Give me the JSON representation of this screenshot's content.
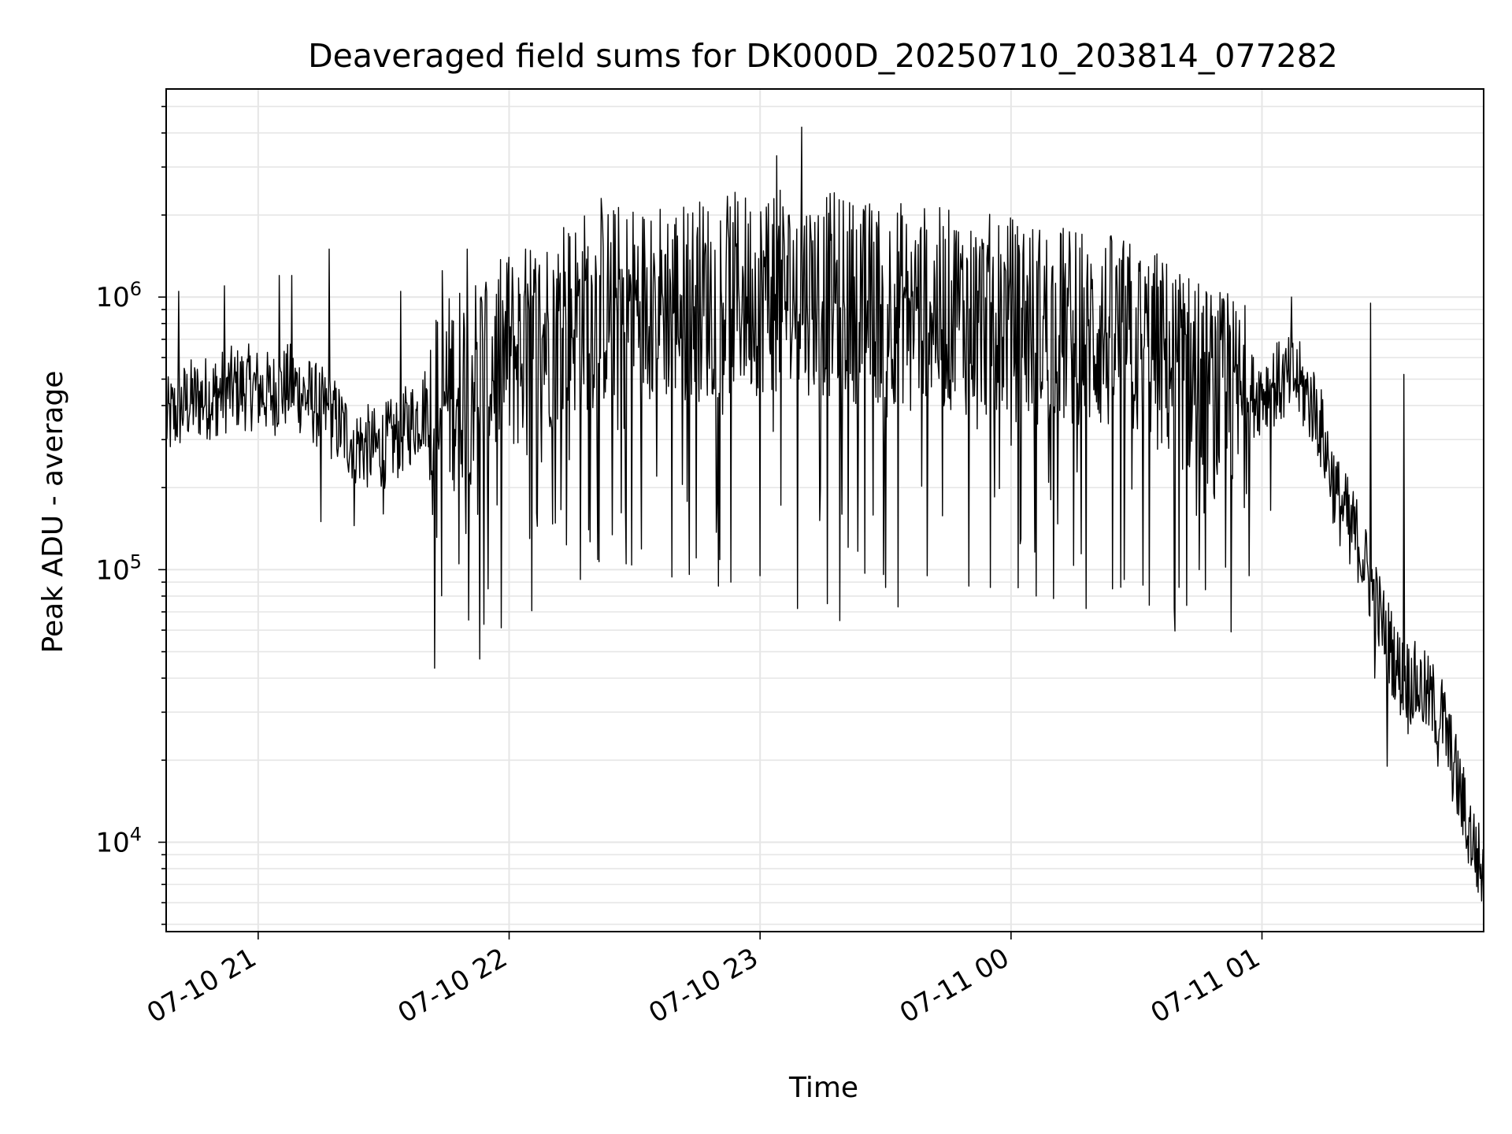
{
  "chart_data": {
    "type": "line",
    "title": "Deaveraged field sums for DK000D_20250710_203814_077282",
    "xlabel": "Time",
    "ylabel": "Peak ADU - average",
    "yscale": "log",
    "grid": true,
    "legend": "none",
    "series_color": "#000000",
    "grid_color": "#e6e6e6",
    "xlim": [
      "2025-07-10 20:38",
      "2025-07-11 01:53"
    ],
    "ylim": [
      4700,
      5800000
    ],
    "x_ticks": [
      {
        "value": "2025-07-10 21:00",
        "label": "07-10 21"
      },
      {
        "value": "2025-07-10 22:00",
        "label": "07-10 22"
      },
      {
        "value": "2025-07-10 23:00",
        "label": "07-10 23"
      },
      {
        "value": "2025-07-11 00:00",
        "label": "07-11 00"
      },
      {
        "value": "2025-07-11 01:00",
        "label": "07-11 01"
      }
    ],
    "y_ticks": [
      {
        "value": 10000,
        "base": "10",
        "exp": "4"
      },
      {
        "value": 100000,
        "base": "10",
        "exp": "5"
      },
      {
        "value": 1000000,
        "base": "10",
        "exp": "6"
      }
    ],
    "series": [
      {
        "points": [
          [
            "2025-07-10 20:38",
            380000
          ],
          [
            "2025-07-10 20:43",
            450000
          ],
          [
            "2025-07-10 20:48",
            470000
          ],
          [
            "2025-07-10 20:53",
            500000
          ],
          [
            "2025-07-10 20:58",
            510000
          ],
          [
            "2025-07-10 21:03",
            480000
          ],
          [
            "2025-07-10 21:08",
            520000
          ],
          [
            "2025-07-10 21:13",
            450000
          ],
          [
            "2025-07-10 21:18",
            390000
          ],
          [
            "2025-07-10 21:23",
            320000
          ],
          [
            "2025-07-10 21:28",
            300000
          ],
          [
            "2025-07-10 21:33",
            330000
          ],
          [
            "2025-07-10 21:38",
            400000
          ],
          [
            "2025-07-10 21:43",
            480000
          ],
          [
            "2025-07-10 21:48",
            600000
          ],
          [
            "2025-07-10 21:53",
            680000
          ],
          [
            "2025-07-10 21:58",
            720000
          ],
          [
            "2025-07-10 22:03",
            800000
          ],
          [
            "2025-07-10 22:08",
            900000
          ],
          [
            "2025-07-10 22:13",
            1000000
          ],
          [
            "2025-07-10 22:18",
            1100000
          ],
          [
            "2025-07-10 22:23",
            1150000
          ],
          [
            "2025-07-10 22:28",
            1150000
          ],
          [
            "2025-07-10 22:33",
            1180000
          ],
          [
            "2025-07-10 22:38",
            1200000
          ],
          [
            "2025-07-10 22:43",
            1200000
          ],
          [
            "2025-07-10 22:48",
            1220000
          ],
          [
            "2025-07-10 22:53",
            1250000
          ],
          [
            "2025-07-10 22:58",
            1280000
          ],
          [
            "2025-07-10 23:03",
            1300000
          ],
          [
            "2025-07-10 23:08",
            1300000
          ],
          [
            "2025-07-10 23:13",
            1280000
          ],
          [
            "2025-07-10 23:18",
            1250000
          ],
          [
            "2025-07-10 23:23",
            1200000
          ],
          [
            "2025-07-10 23:28",
            1180000
          ],
          [
            "2025-07-10 23:33",
            1180000
          ],
          [
            "2025-07-10 23:38",
            1150000
          ],
          [
            "2025-07-10 23:43",
            1100000
          ],
          [
            "2025-07-10 23:48",
            1080000
          ],
          [
            "2025-07-10 23:53",
            1050000
          ],
          [
            "2025-07-10 23:58",
            1050000
          ],
          [
            "2025-07-11 00:03",
            1000000
          ],
          [
            "2025-07-11 00:08",
            980000
          ],
          [
            "2025-07-11 00:13",
            950000
          ],
          [
            "2025-07-11 00:18",
            930000
          ],
          [
            "2025-07-11 00:23",
            900000
          ],
          [
            "2025-07-11 00:28",
            850000
          ],
          [
            "2025-07-11 00:33",
            800000
          ],
          [
            "2025-07-11 00:38",
            720000
          ],
          [
            "2025-07-11 00:43",
            640000
          ],
          [
            "2025-07-11 00:48",
            560000
          ],
          [
            "2025-07-11 00:53",
            520000
          ],
          [
            "2025-07-11 00:58",
            480000
          ],
          [
            "2025-07-11 01:03",
            520000
          ],
          [
            "2025-07-11 01:08",
            550000
          ],
          [
            "2025-07-11 01:13",
            420000
          ],
          [
            "2025-07-11 01:18",
            200000
          ],
          [
            "2025-07-11 01:23",
            140000
          ],
          [
            "2025-07-11 01:28",
            75000
          ],
          [
            "2025-07-11 01:33",
            45000
          ],
          [
            "2025-07-11 01:38",
            40000
          ],
          [
            "2025-07-11 01:43",
            32000
          ],
          [
            "2025-07-11 01:48",
            15000
          ],
          [
            "2025-07-11 01:53",
            8000
          ]
        ],
        "dips": [
          [
            "2025-07-10 20:50",
            310000
          ],
          [
            "2025-07-10 21:15",
            150000
          ],
          [
            "2025-07-10 21:17",
            145000
          ],
          [
            "2025-07-10 21:23",
            145000
          ],
          [
            "2025-07-10 21:30",
            160000
          ],
          [
            "2025-07-10 21:44",
            145000
          ],
          [
            "2025-07-10 21:48",
            105000
          ],
          [
            "2025-07-10 21:53",
            47000
          ],
          [
            "2025-07-10 21:54",
            63000
          ],
          [
            "2025-07-10 21:55",
            85000
          ],
          [
            "2025-07-10 22:05",
            130000
          ],
          [
            "2025-07-10 22:17",
            92000
          ],
          [
            "2025-07-10 22:19",
            140000
          ],
          [
            "2025-07-10 22:28",
            105000
          ],
          [
            "2025-07-10 22:39",
            94000
          ],
          [
            "2025-07-10 22:43",
            96000
          ],
          [
            "2025-07-10 22:50",
            87000
          ],
          [
            "2025-07-10 22:53",
            90000
          ],
          [
            "2025-07-10 23:00",
            95000
          ],
          [
            "2025-07-10 23:02",
            75000
          ],
          [
            "2025-07-10 23:04",
            70000
          ],
          [
            "2025-07-10 23:09",
            72000
          ],
          [
            "2025-07-10 23:16",
            75000
          ],
          [
            "2025-07-10 23:19",
            65000
          ],
          [
            "2025-07-10 23:25",
            97000
          ],
          [
            "2025-07-10 23:30",
            86000
          ],
          [
            "2025-07-10 23:33",
            73000
          ],
          [
            "2025-07-10 23:40",
            95000
          ],
          [
            "2025-07-10 23:47",
            88000
          ],
          [
            "2025-07-10 23:50",
            87000
          ],
          [
            "2025-07-10 23:55",
            86000
          ],
          [
            "2025-07-11 00:06",
            80000
          ],
          [
            "2025-07-11 00:12",
            72000
          ],
          [
            "2025-07-11 00:18",
            72000
          ],
          [
            "2025-07-11 00:27",
            92000
          ],
          [
            "2025-07-11 00:33",
            74000
          ],
          [
            "2025-07-11 00:39",
            72000
          ],
          [
            "2025-07-11 00:45",
            100000
          ],
          [
            "2025-07-11 00:57",
            95000
          ],
          [
            "2025-07-11 01:02",
            165000
          ],
          [
            "2025-07-11 01:21",
            105000
          ],
          [
            "2025-07-11 01:27",
            40000
          ],
          [
            "2025-07-11 01:30",
            19000
          ],
          [
            "2025-07-11 01:35",
            25000
          ],
          [
            "2025-07-11 01:42",
            19000
          ],
          [
            "2025-07-11 01:49",
            10000
          ]
        ],
        "spikes": [
          [
            "2025-07-10 20:41",
            1050000
          ],
          [
            "2025-07-10 20:52",
            1100000
          ],
          [
            "2025-07-10 21:05",
            1200000
          ],
          [
            "2025-07-10 21:08",
            1200000
          ],
          [
            "2025-07-10 21:17",
            1500000
          ],
          [
            "2025-07-10 21:34",
            1050000
          ],
          [
            "2025-07-10 21:44",
            1250000
          ],
          [
            "2025-07-10 21:50",
            1500000
          ],
          [
            "2025-07-10 22:00",
            1400000
          ],
          [
            "2025-07-10 22:13",
            1800000
          ],
          [
            "2025-07-10 22:22",
            2300000
          ],
          [
            "2025-07-10 22:34",
            1900000
          ],
          [
            "2025-07-10 22:45",
            1800000
          ],
          [
            "2025-07-10 22:52",
            1850000
          ],
          [
            "2025-07-10 23:02",
            2200000
          ],
          [
            "2025-07-10 23:04",
            3300000
          ],
          [
            "2025-07-10 23:07",
            2000000
          ],
          [
            "2025-07-10 23:10",
            4200000
          ],
          [
            "2025-07-10 23:17",
            1700000
          ],
          [
            "2025-07-10 23:24",
            1850000
          ],
          [
            "2025-07-10 23:35",
            1850000
          ],
          [
            "2025-07-10 23:47",
            1750000
          ],
          [
            "2025-07-11 00:03",
            1700000
          ],
          [
            "2025-07-11 00:12",
            1700000
          ],
          [
            "2025-07-11 00:17",
            1700000
          ],
          [
            "2025-07-11 00:44",
            1050000
          ],
          [
            "2025-07-11 00:51",
            960000
          ],
          [
            "2025-07-11 01:07",
            1000000
          ],
          [
            "2025-07-11 01:26",
            950000
          ],
          [
            "2025-07-11 01:34",
            520000
          ]
        ]
      }
    ]
  }
}
